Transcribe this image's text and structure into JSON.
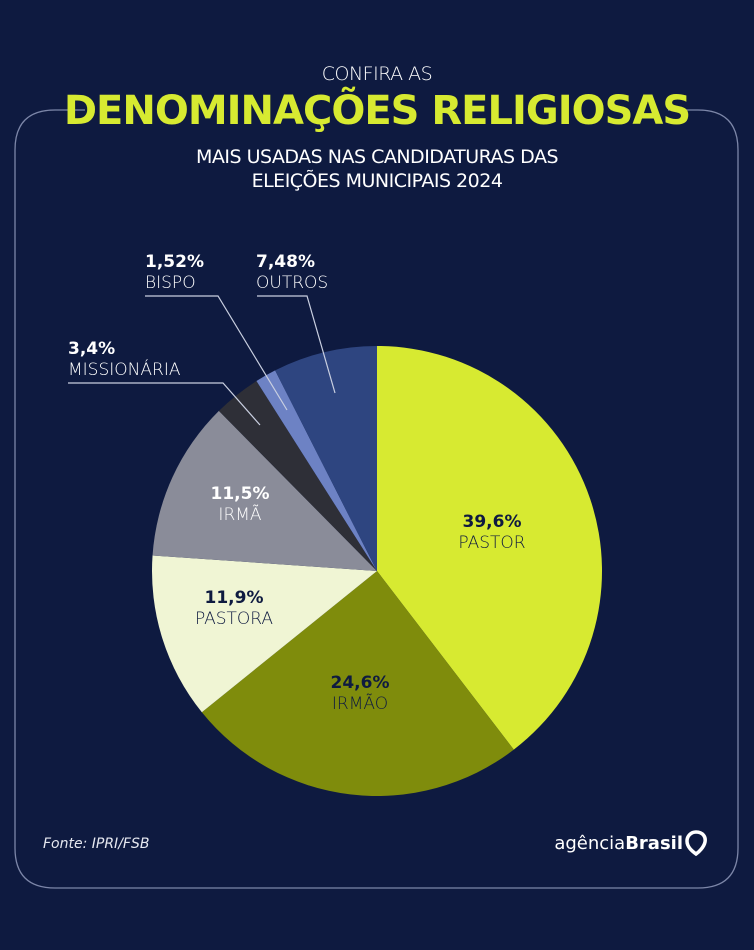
{
  "header": {
    "kicker": "CONFIRA AS",
    "title": "DENOMINAÇÕES RELIGIOSAS",
    "subtitle_line1": "MAIS USADAS NAS CANDIDATURAS DAS",
    "subtitle_line2": "ELEIÇÕES MUNICIPAIS 2024"
  },
  "chart_data": {
    "type": "pie",
    "start": "top",
    "direction": "clockwise",
    "slices": [
      {
        "label": "PASTOR",
        "value": 39.6,
        "display": "39,6%",
        "color": "#d7ea31"
      },
      {
        "label": "IRMÃO",
        "value": 24.6,
        "display": "24,6%",
        "color": "#7f8c0c"
      },
      {
        "label": "PASTORA",
        "value": 11.9,
        "display": "11,9%",
        "color": "#f0f5d4"
      },
      {
        "label": "IRMÃ",
        "value": 11.5,
        "display": "11,5%",
        "color": "#8a8c99"
      },
      {
        "label": "MISSIONÁRIA",
        "value": 3.4,
        "display": "3,4%",
        "color": "#2e2f37"
      },
      {
        "label": "BISPO",
        "value": 1.52,
        "display": "1,52%",
        "color": "#6d82c4"
      },
      {
        "label": "OUTROS",
        "value": 7.48,
        "display": "7,48%",
        "color": "#2e4580"
      }
    ]
  },
  "footer": {
    "source": "Fonte:  IPRI/FSB",
    "logo_light": "agência",
    "logo_bold": "Brasil"
  },
  "colors": {
    "background": "#0e1a40",
    "accent": "#d7ea31"
  }
}
